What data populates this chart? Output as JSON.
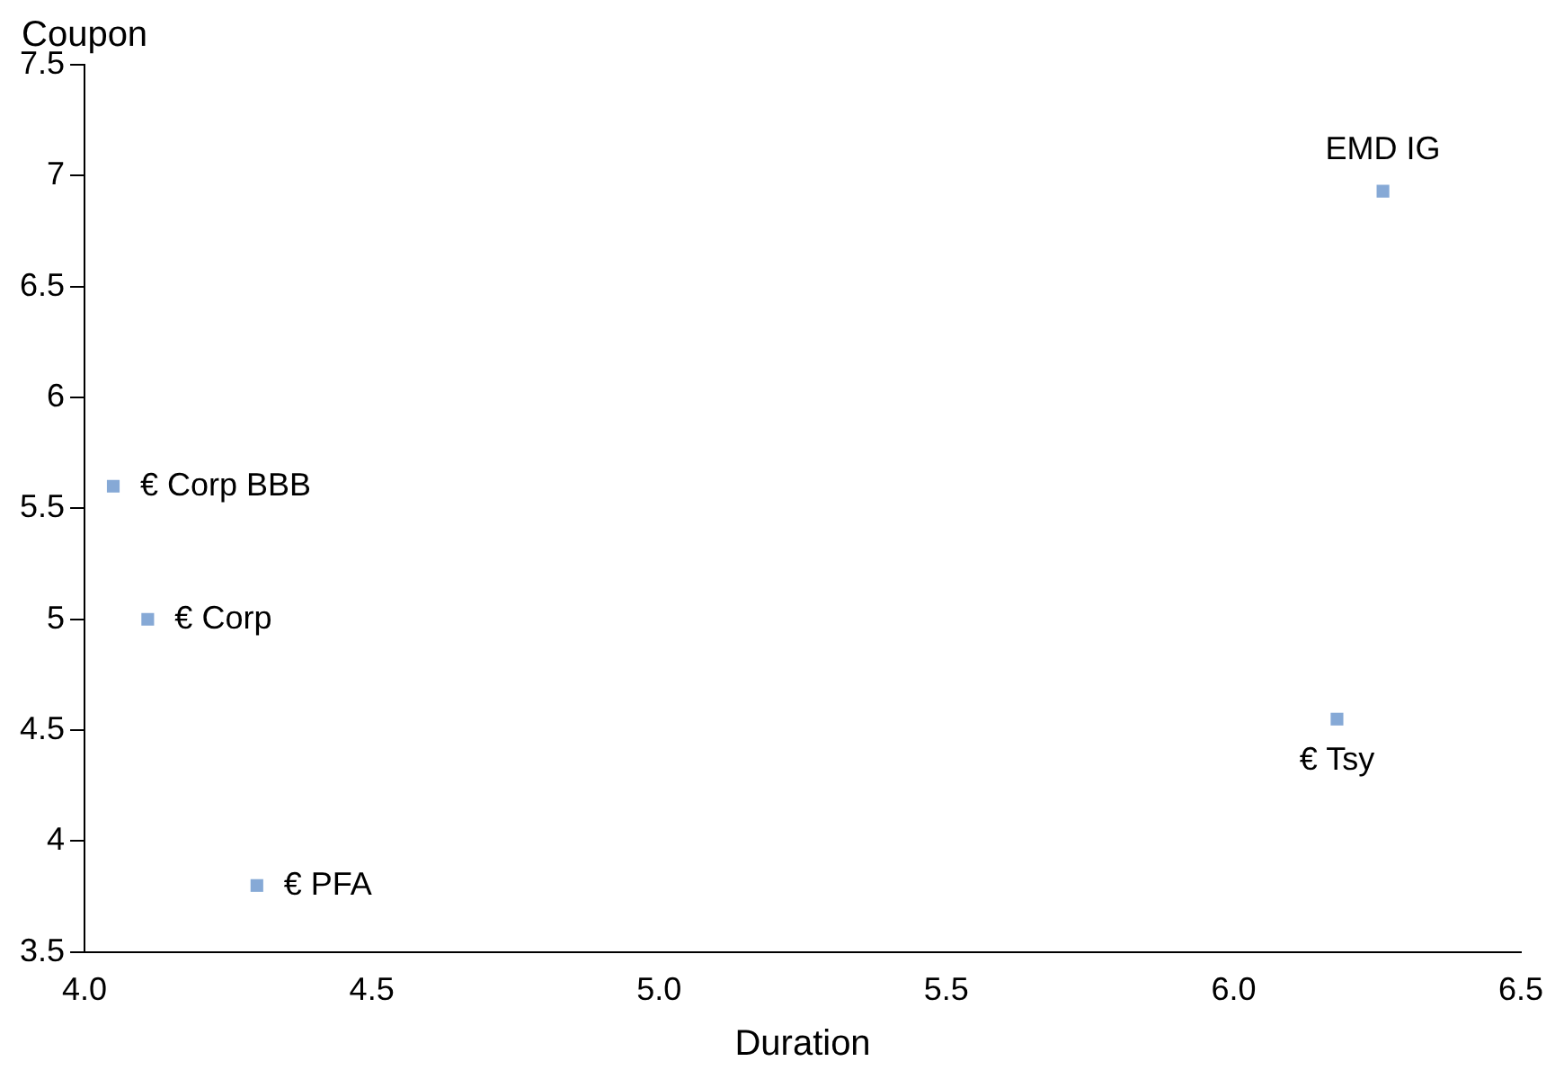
{
  "chart_data": {
    "type": "scatter",
    "xlabel": "Duration",
    "ylabel": "Coupon",
    "x": [
      6.26,
      4.05,
      4.11,
      6.18,
      4.3
    ],
    "series": [
      {
        "color": "#86a9d6",
        "values": [
          6.93,
          5.6,
          5.0,
          4.55,
          3.8
        ]
      }
    ],
    "annotations": [
      {
        "text": "EMD IG",
        "x": 6.26,
        "y": 6.93
      },
      {
        "text": "€ Corp BBB",
        "x": 4.05,
        "y": 5.6
      },
      {
        "text": "€ Corp",
        "x": 4.11,
        "y": 5.0
      },
      {
        "text": "€ Tsy",
        "x": 6.18,
        "y": 4.55
      },
      {
        "text": "€ PFA",
        "x": 4.3,
        "y": 3.8
      }
    ],
    "xlim": [
      4.0,
      6.5
    ],
    "xticks": [
      {
        "value": 4,
        "label": "4.0"
      },
      4.5,
      {
        "value": 5,
        "label": "5.0"
      },
      5.5,
      {
        "value": 6,
        "label": "6.0"
      },
      6.5
    ],
    "ylim": [
      3.5,
      7.5
    ],
    "yticks": [
      3.5,
      4,
      4.5,
      5,
      5.5,
      6,
      6.5,
      7,
      7.5
    ],
    "marker": "square",
    "grid": false,
    "legend": false
  }
}
